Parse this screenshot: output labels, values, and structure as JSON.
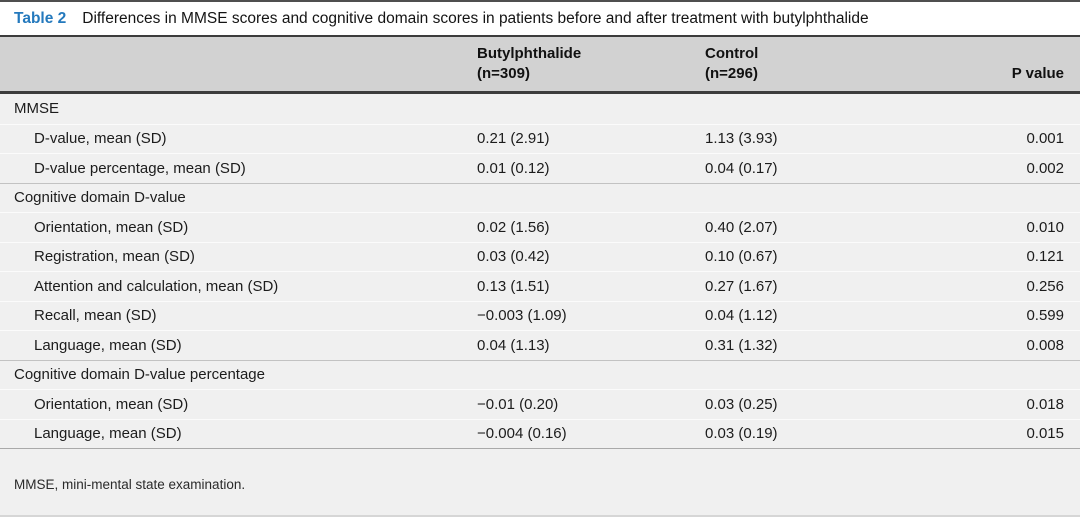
{
  "table": {
    "label": "Table 2",
    "title": "Differences in MMSE scores and cognitive domain scores in patients before and after treatment with butylphthalide",
    "columns": {
      "group1_name": "Butylphthalide",
      "group1_n": "(n=309)",
      "group2_name": "Control",
      "group2_n": "(n=296)",
      "p": "P value"
    },
    "rows": [
      {
        "type": "section",
        "label": "MMSE",
        "butylphthalide": "",
        "control": "",
        "p": ""
      },
      {
        "type": "data",
        "label": "D-value, mean (SD)",
        "butylphthalide": "0.21 (2.91)",
        "control": "1.13 (3.93)",
        "p": "0.001"
      },
      {
        "type": "data",
        "label": "D-value percentage, mean (SD)",
        "butylphthalide": "0.01 (0.12)",
        "control": "0.04 (0.17)",
        "p": "0.002"
      },
      {
        "type": "section",
        "label": "Cognitive domain D-value",
        "butylphthalide": "",
        "control": "",
        "p": ""
      },
      {
        "type": "data",
        "label": "Orientation, mean (SD)",
        "butylphthalide": "0.02 (1.56)",
        "control": "0.40 (2.07)",
        "p": "0.010"
      },
      {
        "type": "data",
        "label": "Registration, mean (SD)",
        "butylphthalide": "0.03 (0.42)",
        "control": "0.10 (0.67)",
        "p": "0.121"
      },
      {
        "type": "data",
        "label": "Attention and calculation, mean (SD)",
        "butylphthalide": "0.13 (1.51)",
        "control": "0.27 (1.67)",
        "p": "0.256"
      },
      {
        "type": "data",
        "label": "Recall, mean (SD)",
        "butylphthalide": "−0.003 (1.09)",
        "control": "0.04 (1.12)",
        "p": "0.599"
      },
      {
        "type": "data",
        "label": "Language, mean (SD)",
        "butylphthalide": "0.04 (1.13)",
        "control": "0.31 (1.32)",
        "p": "0.008"
      },
      {
        "type": "section",
        "label": "Cognitive domain D-value percentage",
        "butylphthalide": "",
        "control": "",
        "p": ""
      },
      {
        "type": "data",
        "label": "Orientation, mean (SD)",
        "butylphthalide": "−0.01 (0.20)",
        "control": "0.03 (0.25)",
        "p": "0.018"
      },
      {
        "type": "data",
        "label": "Language, mean (SD)",
        "butylphthalide": "−0.004 (0.16)",
        "control": "0.03 (0.19)",
        "p": "0.015"
      }
    ],
    "footnote": "MMSE, mini-mental state examination.",
    "colors": {
      "caption_label_blue": "#2479bd",
      "header_band_gray": "#d2d2d2",
      "body_row_gray": "#f0f0f0",
      "dark_rule": "#3c3c3c"
    }
  }
}
